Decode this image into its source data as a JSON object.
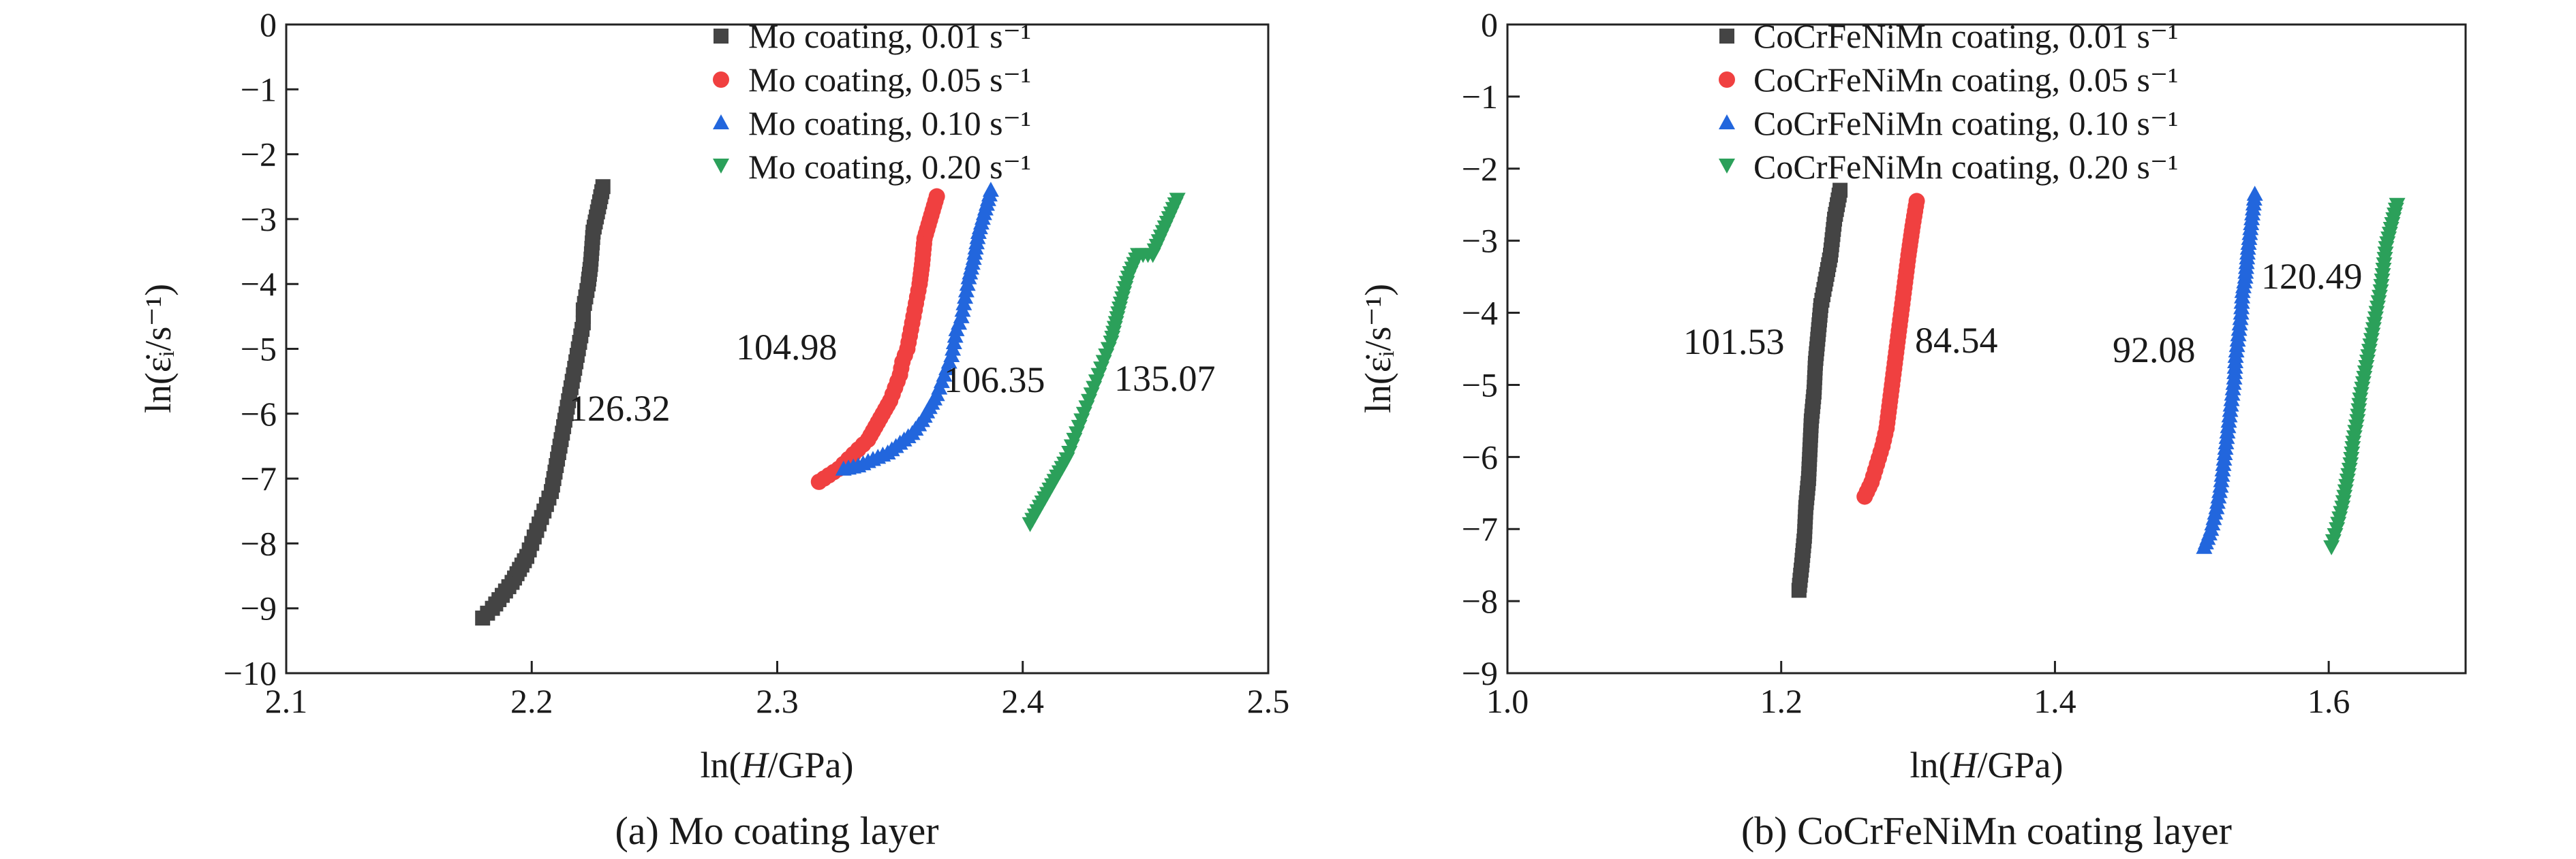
{
  "colors": {
    "s001": "#444444",
    "s005": "#f04040",
    "s010": "#2266dd",
    "s020": "#2ba05a",
    "axis": "#222222"
  },
  "chart_data": [
    {
      "type": "scatter",
      "caption": "(a) Mo coating layer",
      "xlabel": {
        "pre": "ln(",
        "italic": "H",
        "post": "/GPa)"
      },
      "ylabel": "ln(ε̇ᵢ/s⁻¹)",
      "xlim": [
        2.1,
        2.5
      ],
      "ylim": [
        -10,
        0
      ],
      "xticks": [
        "2.1",
        "2.2",
        "2.3",
        "2.4",
        "2.5"
      ],
      "yticks": [
        "0",
        "−1",
        "−2",
        "−3",
        "−4",
        "−5",
        "−6",
        "−7",
        "−8",
        "−9",
        "−10"
      ],
      "legend_position": "top-right",
      "series": [
        {
          "name": "Mo coating, 0.01 s⁻¹",
          "color_key": "s001",
          "marker": "square",
          "annotation": "126.32",
          "points": [
            [
              2.18,
              -9.15
            ],
            [
              2.184,
              -9.0
            ],
            [
              2.188,
              -8.8
            ],
            [
              2.192,
              -8.6
            ],
            [
              2.195,
              -8.4
            ],
            [
              2.198,
              -8.2
            ],
            [
              2.2,
              -8.0
            ],
            [
              2.202,
              -7.8
            ],
            [
              2.204,
              -7.6
            ],
            [
              2.206,
              -7.4
            ],
            [
              2.208,
              -7.2
            ],
            [
              2.209,
              -7.0
            ],
            [
              2.21,
              -6.8
            ],
            [
              2.211,
              -6.6
            ],
            [
              2.212,
              -6.4
            ],
            [
              2.213,
              -6.2
            ],
            [
              2.214,
              -6.0
            ],
            [
              2.215,
              -5.8
            ],
            [
              2.216,
              -5.6
            ],
            [
              2.217,
              -5.4
            ],
            [
              2.218,
              -5.2
            ],
            [
              2.219,
              -5.0
            ],
            [
              2.22,
              -4.8
            ],
            [
              2.221,
              -4.6
            ],
            [
              2.221,
              -4.4
            ],
            [
              2.222,
              -4.2
            ],
            [
              2.223,
              -4.0
            ],
            [
              2.224,
              -3.7
            ],
            [
              2.225,
              -3.2
            ],
            [
              2.229,
              -2.5
            ]
          ]
        },
        {
          "name": "Mo coating, 0.05 s⁻¹",
          "color_key": "s005",
          "marker": "circle",
          "annotation": "104.98",
          "points": [
            [
              2.317,
              -7.05
            ],
            [
              2.321,
              -6.95
            ],
            [
              2.325,
              -6.85
            ],
            [
              2.329,
              -6.7
            ],
            [
              2.333,
              -6.55
            ],
            [
              2.337,
              -6.4
            ],
            [
              2.34,
              -6.2
            ],
            [
              2.343,
              -6.0
            ],
            [
              2.346,
              -5.8
            ],
            [
              2.348,
              -5.6
            ],
            [
              2.35,
              -5.4
            ],
            [
              2.351,
              -5.2
            ],
            [
              2.353,
              -5.0
            ],
            [
              2.354,
              -4.8
            ],
            [
              2.355,
              -4.6
            ],
            [
              2.356,
              -4.4
            ],
            [
              2.357,
              -4.2
            ],
            [
              2.358,
              -4.0
            ],
            [
              2.359,
              -3.7
            ],
            [
              2.36,
              -3.3
            ],
            [
              2.365,
              -2.65
            ]
          ]
        },
        {
          "name": "Mo coating, 0.10 s⁻¹",
          "color_key": "s010",
          "marker": "triangle-up",
          "annotation": "106.35",
          "points": [
            [
              2.327,
              -6.85
            ],
            [
              2.333,
              -6.8
            ],
            [
              2.339,
              -6.7
            ],
            [
              2.345,
              -6.6
            ],
            [
              2.35,
              -6.45
            ],
            [
              2.355,
              -6.3
            ],
            [
              2.359,
              -6.1
            ],
            [
              2.362,
              -5.9
            ],
            [
              2.365,
              -5.7
            ],
            [
              2.367,
              -5.5
            ],
            [
              2.369,
              -5.3
            ],
            [
              2.371,
              -5.1
            ],
            [
              2.372,
              -4.9
            ],
            [
              2.373,
              -4.7
            ],
            [
              2.375,
              -4.5
            ],
            [
              2.376,
              -4.3
            ],
            [
              2.377,
              -4.1
            ],
            [
              2.378,
              -3.9
            ],
            [
              2.38,
              -3.6
            ],
            [
              2.382,
              -3.2
            ],
            [
              2.387,
              -2.55
            ]
          ]
        },
        {
          "name": "Mo coating, 0.20 s⁻¹",
          "color_key": "s020",
          "marker": "triangle-down",
          "annotation": "135.07",
          "points": [
            [
              2.403,
              -7.7
            ],
            [
              2.406,
              -7.5
            ],
            [
              2.409,
              -7.3
            ],
            [
              2.412,
              -7.1
            ],
            [
              2.415,
              -6.9
            ],
            [
              2.418,
              -6.7
            ],
            [
              2.42,
              -6.5
            ],
            [
              2.422,
              -6.3
            ],
            [
              2.424,
              -6.1
            ],
            [
              2.426,
              -5.9
            ],
            [
              2.428,
              -5.7
            ],
            [
              2.43,
              -5.5
            ],
            [
              2.432,
              -5.3
            ],
            [
              2.434,
              -5.1
            ],
            [
              2.436,
              -4.9
            ],
            [
              2.438,
              -4.6
            ],
            [
              2.44,
              -4.3
            ],
            [
              2.443,
              -3.9
            ],
            [
              2.447,
              -3.55
            ],
            [
              2.453,
              -3.55
            ],
            [
              2.463,
              -2.7
            ]
          ]
        }
      ]
    },
    {
      "type": "scatter",
      "caption": "(b) CoCrFeNiMn coating layer",
      "xlabel": {
        "pre": "ln(",
        "italic": "H",
        "post": "/GPa)"
      },
      "ylabel": "ln(ε̇ᵢ/s⁻¹)",
      "xlim": [
        1.0,
        1.7
      ],
      "ylim": [
        -9,
        0
      ],
      "xticks": [
        "1.0",
        "1.2",
        "1.4",
        "1.6"
      ],
      "yticks": [
        "0",
        "−1",
        "−2",
        "−3",
        "−4",
        "−5",
        "−6",
        "−7",
        "−8",
        "−9"
      ],
      "legend_position": "top-right",
      "series": [
        {
          "name": "CoCrFeNiMn coating, 0.01 s⁻¹",
          "color_key": "s001",
          "marker": "square",
          "annotation": "101.53",
          "points": [
            [
              1.213,
              -7.85
            ],
            [
              1.215,
              -7.5
            ],
            [
              1.217,
              -7.1
            ],
            [
              1.218,
              -6.7
            ],
            [
              1.22,
              -6.3
            ],
            [
              1.221,
              -5.9
            ],
            [
              1.222,
              -5.5
            ],
            [
              1.224,
              -5.1
            ],
            [
              1.225,
              -4.7
            ],
            [
              1.227,
              -4.3
            ],
            [
              1.229,
              -3.9
            ],
            [
              1.232,
              -3.6
            ],
            [
              1.236,
              -3.2
            ],
            [
              1.239,
              -2.7
            ],
            [
              1.243,
              -2.3
            ]
          ]
        },
        {
          "name": "CoCrFeNiMn coating, 0.05 s⁻¹",
          "color_key": "s005",
          "marker": "circle",
          "annotation": "84.54",
          "points": [
            [
              1.261,
              -6.55
            ],
            [
              1.266,
              -6.35
            ],
            [
              1.27,
              -6.1
            ],
            [
              1.274,
              -5.85
            ],
            [
              1.277,
              -5.6
            ],
            [
              1.279,
              -5.3
            ],
            [
              1.281,
              -5.0
            ],
            [
              1.283,
              -4.7
            ],
            [
              1.285,
              -4.4
            ],
            [
              1.287,
              -4.1
            ],
            [
              1.289,
              -3.8
            ],
            [
              1.291,
              -3.5
            ],
            [
              1.293,
              -3.2
            ],
            [
              1.296,
              -2.8
            ],
            [
              1.299,
              -2.45
            ]
          ]
        },
        {
          "name": "CoCrFeNiMn coating, 0.10 s⁻¹",
          "color_key": "s010",
          "marker": "triangle-up",
          "annotation": "92.08",
          "points": [
            [
              1.509,
              -7.25
            ],
            [
              1.514,
              -7.0
            ],
            [
              1.518,
              -6.7
            ],
            [
              1.521,
              -6.4
            ],
            [
              1.523,
              -6.1
            ],
            [
              1.525,
              -5.8
            ],
            [
              1.527,
              -5.5
            ],
            [
              1.529,
              -5.2
            ],
            [
              1.531,
              -4.9
            ],
            [
              1.532,
              -4.6
            ],
            [
              1.534,
              -4.3
            ],
            [
              1.536,
              -4.0
            ],
            [
              1.537,
              -3.7
            ],
            [
              1.539,
              -3.5
            ],
            [
              1.541,
              -3.1
            ],
            [
              1.546,
              -2.35
            ]
          ]
        },
        {
          "name": "CoCrFeNiMn coating, 0.20 s⁻¹",
          "color_key": "s020",
          "marker": "triangle-down",
          "annotation": "120.49",
          "points": [
            [
              1.602,
              -7.25
            ],
            [
              1.606,
              -7.0
            ],
            [
              1.61,
              -6.7
            ],
            [
              1.613,
              -6.4
            ],
            [
              1.616,
              -6.1
            ],
            [
              1.618,
              -5.8
            ],
            [
              1.621,
              -5.5
            ],
            [
              1.623,
              -5.2
            ],
            [
              1.626,
              -4.9
            ],
            [
              1.629,
              -4.6
            ],
            [
              1.632,
              -4.3
            ],
            [
              1.635,
              -4.0
            ],
            [
              1.638,
              -3.7
            ],
            [
              1.64,
              -3.4
            ],
            [
              1.642,
              -3.1
            ],
            [
              1.65,
              -2.5
            ]
          ]
        }
      ]
    }
  ]
}
